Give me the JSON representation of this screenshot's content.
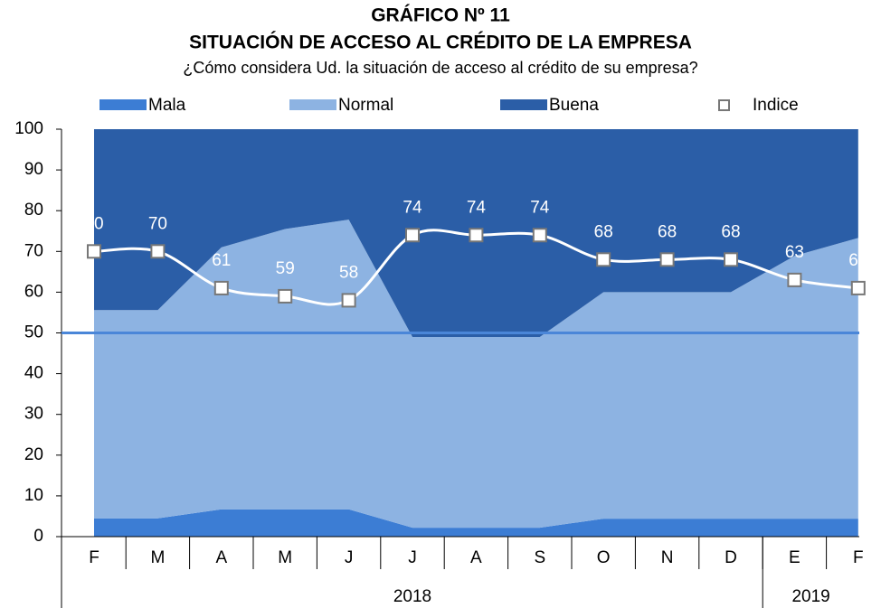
{
  "chart_data": {
    "type": "stacked-area",
    "title": "GRÁFICO Nº 11",
    "subtitle": "SITUACIÓN DE ACCESO AL CRÉDITO DE LA EMPRESA",
    "question": "¿Cómo considera Ud. la situación de acceso al crédito de su empresa?",
    "categories": [
      "F",
      "M",
      "A",
      "M",
      "J",
      "J",
      "A",
      "S",
      "O",
      "N",
      "D",
      "E",
      "F"
    ],
    "year_groups": [
      {
        "label": "2018",
        "count": 11
      },
      {
        "label": "2019",
        "count": 2
      }
    ],
    "series": [
      {
        "name": "Mala",
        "color": "#3c7dd4",
        "values": [
          4.5,
          4.5,
          6.7,
          6.7,
          6.7,
          2.2,
          2.2,
          2.2,
          4.4,
          4.4,
          4.4,
          4.4,
          4.4
        ]
      },
      {
        "name": "Normal",
        "color": "#8db3e2",
        "values": [
          51.1,
          51.1,
          64.3,
          68.8,
          71.1,
          46.8,
          46.8,
          46.8,
          55.6,
          55.6,
          55.6,
          64.5,
          68.9
        ]
      },
      {
        "name": "Buena",
        "color": "#2b5ea7",
        "values": [
          44.4,
          44.4,
          29.0,
          24.5,
          22.2,
          51.0,
          51.0,
          51.0,
          40.0,
          40.0,
          40.0,
          31.1,
          26.7
        ]
      }
    ],
    "index_series": {
      "name": "Indice",
      "color": "#ffffff",
      "marker_edge": "#777777",
      "values": [
        70,
        70,
        61,
        59,
        58,
        74,
        74,
        74,
        68,
        68,
        68,
        63,
        61
      ]
    },
    "reference_line": {
      "value": 50,
      "color": "#4a86d8"
    },
    "ylim": [
      0,
      100
    ],
    "yticks": [
      0,
      10,
      20,
      30,
      40,
      50,
      60,
      70,
      80,
      90,
      100
    ],
    "legend": "top"
  }
}
